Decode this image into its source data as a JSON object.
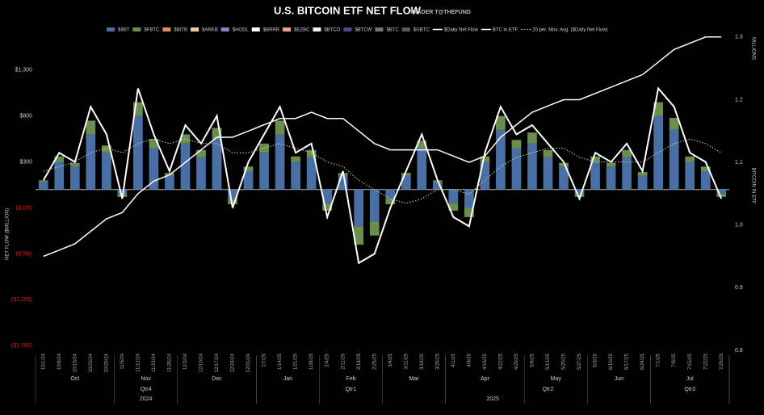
{
  "chart_data": {
    "type": "bar",
    "title": "U.S. BITCOIN ETF NET FLOW",
    "subtitle": "TRADER T@THEFUND",
    "y_label": "NET FLOW ($MILLION)",
    "y2_label": "BITCOIN IN ETF",
    "y2_unit_label": "MILLIONS",
    "categories": [
      "10/1/24",
      "10/8/24",
      "10/15/24",
      "10/22/24",
      "10/29/24",
      "11/5/24",
      "11/12/24",
      "11/19/24",
      "11/26/24",
      "12/3/24",
      "12/10/24",
      "12/17/24",
      "12/24/24",
      "12/31/24",
      "1/7/25",
      "1/14/25",
      "1/21/25",
      "1/28/25",
      "2/4/25",
      "2/11/25",
      "2/18/25",
      "2/25/25",
      "3/4/25",
      "3/11/25",
      "3/18/25",
      "3/25/25",
      "4/1/25",
      "4/8/25",
      "4/15/25",
      "4/22/25",
      "4/29/25",
      "5/6/25",
      "5/13/25",
      "5/20/25",
      "5/27/25",
      "6/3/25",
      "6/10/25",
      "6/17/25",
      "6/24/25",
      "7/1/25",
      "7/8/25",
      "7/15/25",
      "7/22/25",
      "7/29/25"
    ],
    "months": [
      "Oct",
      "Nov",
      "Dec",
      "Jan",
      "Feb",
      "Mar",
      "Apr",
      "May",
      "Jun",
      "Jul"
    ],
    "quarters": [
      "Qtr4",
      "Qtr1",
      "Qtr2",
      "Qtr3"
    ],
    "years": [
      "2024",
      "2025"
    ],
    "ylim": [
      -1750,
      2000
    ],
    "yticks": [
      {
        "value": 1300,
        "label": "$1,300"
      },
      {
        "value": 800,
        "label": "$800"
      },
      {
        "value": 300,
        "label": "$300"
      },
      {
        "value": -200,
        "label": "($200)"
      },
      {
        "value": -700,
        "label": "($700)"
      },
      {
        "value": -1200,
        "label": "($1,200)"
      },
      {
        "value": -1700,
        "label": "($1,700)"
      }
    ],
    "y2lim": [
      0.8,
      1.35
    ],
    "y2ticks": [
      {
        "value": 0.8,
        "label": "0.8"
      },
      {
        "value": 0.9,
        "label": "0.9"
      },
      {
        "value": 1.0,
        "label": "1.0"
      },
      {
        "value": 1.1,
        "label": "1.1"
      },
      {
        "value": 1.2,
        "label": "1.2"
      },
      {
        "value": 1.3,
        "label": "1.3"
      }
    ],
    "series": [
      {
        "name": "$IBIT",
        "color": "#4a6fa5",
        "kind": "bar",
        "values": [
          80,
          300,
          250,
          600,
          400,
          -50,
          800,
          450,
          150,
          500,
          350,
          550,
          -100,
          200,
          400,
          600,
          300,
          350,
          -150,
          150,
          -400,
          -350,
          -100,
          150,
          450,
          80,
          -150,
          -200,
          300,
          650,
          450,
          500,
          350,
          250,
          -50,
          300,
          250,
          350,
          150,
          800,
          650,
          300,
          200,
          -50
        ]
      },
      {
        "name": "$FBTC",
        "color": "#6b8e4e",
        "kind": "bar",
        "values": [
          20,
          60,
          40,
          150,
          80,
          -30,
          150,
          100,
          30,
          100,
          80,
          120,
          -60,
          50,
          100,
          150,
          60,
          80,
          -80,
          30,
          -200,
          -150,
          -60,
          30,
          80,
          20,
          -80,
          -100,
          60,
          150,
          90,
          120,
          80,
          40,
          -30,
          60,
          40,
          80,
          40,
          150,
          130,
          60,
          50,
          -30
        ]
      },
      {
        "name": "$Daily Net Flow",
        "color": "#ffffff",
        "kind": "line",
        "values": [
          100,
          400,
          300,
          900,
          600,
          -100,
          1100,
          600,
          200,
          700,
          500,
          800,
          -200,
          300,
          600,
          900,
          400,
          500,
          -300,
          200,
          -800,
          -700,
          -200,
          200,
          600,
          100,
          -300,
          -400,
          400,
          900,
          600,
          700,
          500,
          300,
          -100,
          400,
          300,
          500,
          200,
          1100,
          900,
          400,
          300,
          -100
        ]
      },
      {
        "name": "BTC in ETF",
        "color": "#ffffff",
        "kind": "line",
        "axis": "y2",
        "values": [
          0.95,
          0.96,
          0.97,
          0.99,
          1.01,
          1.02,
          1.05,
          1.07,
          1.08,
          1.1,
          1.12,
          1.14,
          1.14,
          1.15,
          1.16,
          1.17,
          1.17,
          1.18,
          1.17,
          1.17,
          1.15,
          1.13,
          1.12,
          1.12,
          1.12,
          1.12,
          1.11,
          1.1,
          1.11,
          1.14,
          1.16,
          1.18,
          1.19,
          1.2,
          1.2,
          1.21,
          1.22,
          1.23,
          1.24,
          1.26,
          1.28,
          1.29,
          1.3,
          1.3
        ]
      },
      {
        "name": "20 per. Mov. Avg. ($Daily Net Flow)",
        "color": "#cfd8b0",
        "kind": "dotted",
        "values": [
          200,
          250,
          300,
          400,
          450,
          400,
          500,
          550,
          500,
          550,
          500,
          500,
          400,
          400,
          450,
          500,
          450,
          400,
          300,
          250,
          100,
          0,
          -100,
          -150,
          -100,
          0,
          0,
          -50,
          100,
          250,
          350,
          400,
          450,
          450,
          350,
          300,
          300,
          300,
          300,
          400,
          500,
          550,
          500,
          400
        ]
      }
    ],
    "other_funds": [
      {
        "name": "$BITB",
        "color": "#e0915a"
      },
      {
        "name": "$ARKB",
        "color": "#f2c9a0"
      },
      {
        "name": "$HODL",
        "color": "#8a7fc0"
      },
      {
        "name": "$BRRR",
        "color": "#ffffff"
      },
      {
        "name": "$EZBC",
        "color": "#e8a58a"
      },
      {
        "name": "$BTCO",
        "color": "#f0f0f0"
      },
      {
        "name": "$BTCW",
        "color": "#4b4a8a"
      },
      {
        "name": "$BTC",
        "color": "#777777"
      },
      {
        "name": "$GBTC",
        "color": "#5a5a5a"
      }
    ]
  }
}
